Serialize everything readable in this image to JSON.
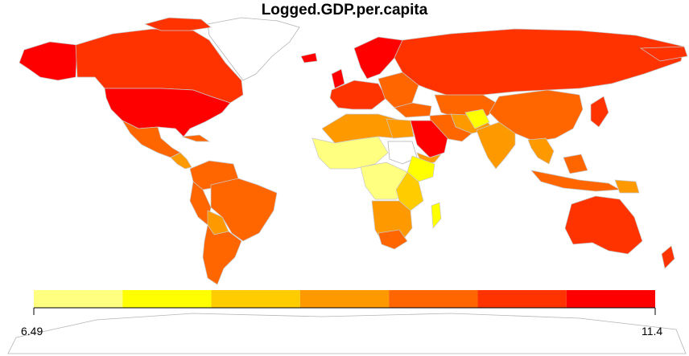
{
  "title": "Logged.GDP.per.capita",
  "legend": {
    "min_label": "6.49",
    "max_label": "11.4",
    "colors": [
      "#ffff80",
      "#ffff00",
      "#ffcc00",
      "#ff9900",
      "#ff6600",
      "#ff3300",
      "#ff0000"
    ]
  },
  "palette_names": {
    "bin1": "#ffff80",
    "bin2": "#ffff00",
    "bin3": "#ffcc00",
    "bin4": "#ff9900",
    "bin5": "#ff6600",
    "bin6": "#ff3300",
    "bin7": "#ff0000"
  }
}
